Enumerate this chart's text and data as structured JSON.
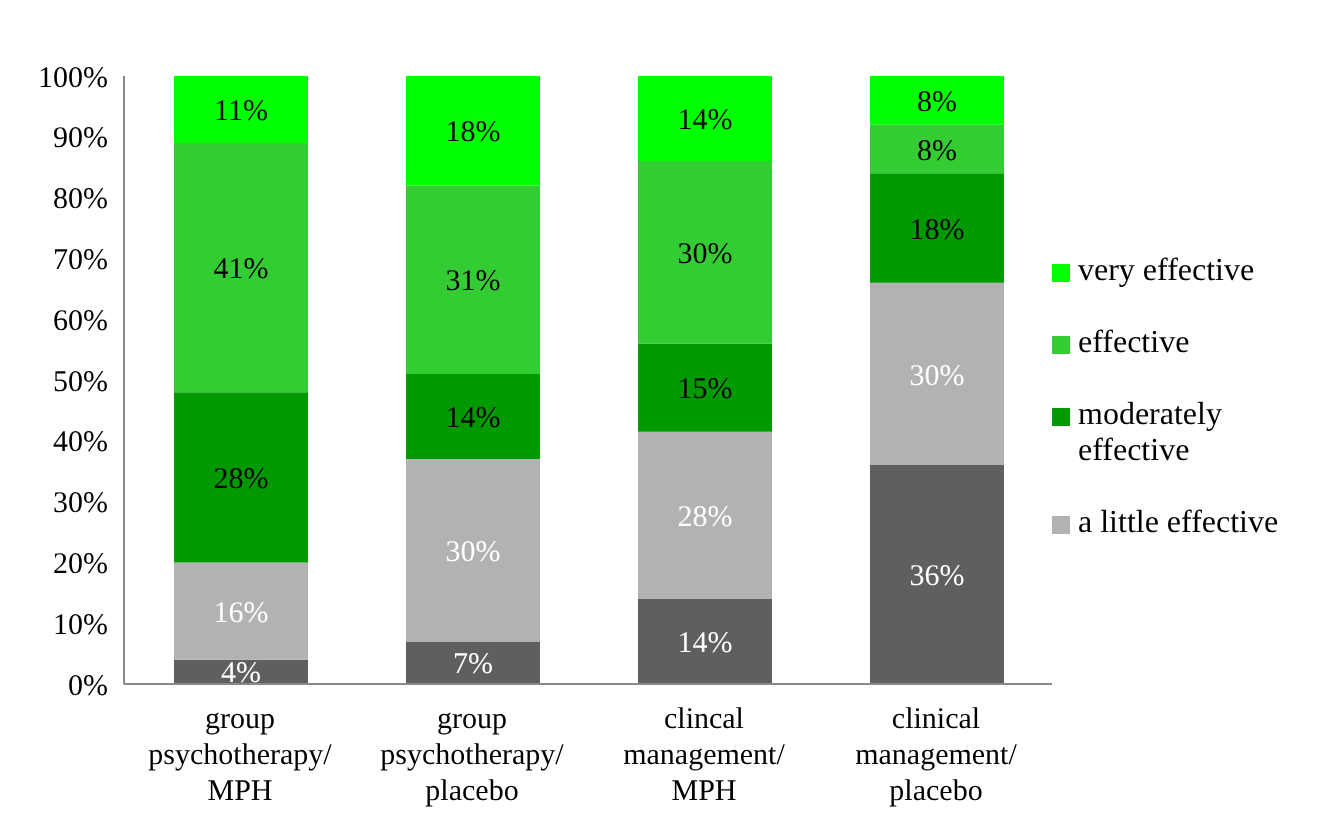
{
  "chart_data": {
    "type": "bar",
    "stacked": true,
    "categories": [
      "group psychotherapy/ MPH",
      "group psychotherapy/ placebo",
      "clincal management/ MPH",
      "clinical management/ placebo"
    ],
    "series": [
      {
        "color": "#5f5f5f",
        "values": [
          4,
          7,
          14,
          36
        ],
        "value_labels": [
          "4%",
          "7%",
          "14%",
          "36%"
        ]
      },
      {
        "name": "a little effective",
        "color": "#b2b2b2",
        "values": [
          16,
          30,
          27.5,
          30
        ],
        "value_labels": [
          "16%",
          "30%",
          "28%",
          "30%"
        ]
      },
      {
        "name": "moderately effective",
        "color": "#009900",
        "values": [
          28,
          14,
          14.5,
          18
        ],
        "value_labels": [
          "28%",
          "14%",
          "15%",
          "18%"
        ]
      },
      {
        "name": "effective",
        "color": "#33cc33",
        "values": [
          41,
          31,
          30,
          8
        ],
        "value_labels": [
          "41%",
          "31%",
          "30%",
          "8%"
        ]
      },
      {
        "name": "very effective",
        "color": "#00ff00",
        "values": [
          11,
          18,
          14,
          8
        ],
        "value_labels": [
          "11%",
          "18%",
          "14%",
          "8%"
        ]
      }
    ],
    "ylim": [
      0,
      100
    ],
    "yticks": [
      {
        "value": 0,
        "label": "0%"
      },
      {
        "value": 10,
        "label": "10%"
      },
      {
        "value": 20,
        "label": "20%"
      },
      {
        "value": 30,
        "label": "30%"
      },
      {
        "value": 40,
        "label": "40%"
      },
      {
        "value": 50,
        "label": "50%"
      },
      {
        "value": 60,
        "label": "60%"
      },
      {
        "value": 70,
        "label": "70%"
      },
      {
        "value": 80,
        "label": "80%"
      },
      {
        "value": 90,
        "label": "90%"
      },
      {
        "value": 100,
        "label": "100%"
      }
    ],
    "grid": false,
    "legend": "right"
  }
}
